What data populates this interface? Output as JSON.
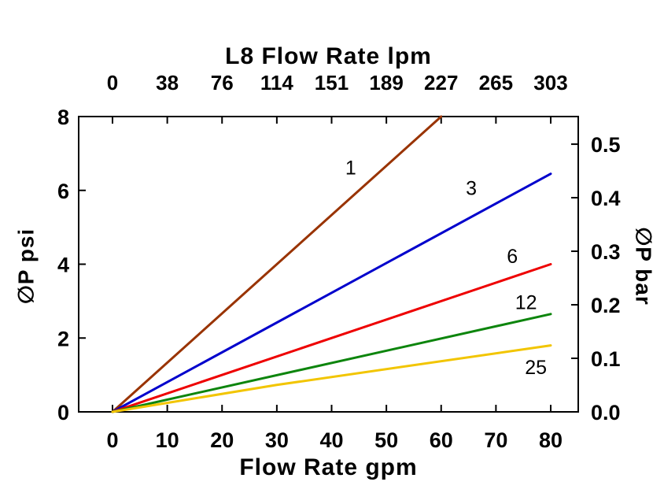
{
  "chart_data": {
    "type": "line",
    "title": "L8 Flow Rate lpm",
    "xlabel_top": "L8 Flow Rate lpm",
    "xlabel_bottom": "Flow Rate gpm",
    "ylabel_left": "∅P psi",
    "ylabel_right": "∅P bar",
    "grid": false,
    "legend": "inline-line-labels",
    "x_axis_bottom": {
      "unit": "gpm",
      "min": 0,
      "max": 80,
      "ticks": [
        0,
        10,
        20,
        30,
        40,
        50,
        60,
        70,
        80
      ]
    },
    "x_axis_top": {
      "unit": "lpm",
      "tick_labels": [
        "0",
        "38",
        "76",
        "114",
        "151",
        "189",
        "227",
        "265",
        "303"
      ]
    },
    "y_axis_left": {
      "unit": "psi",
      "min": 0,
      "max": 8,
      "ticks": [
        0,
        2,
        4,
        6,
        8
      ]
    },
    "y_axis_right": {
      "unit": "bar",
      "tick_labels": [
        "0.0",
        "0.1",
        "0.2",
        "0.3",
        "0.4",
        "0.5"
      ],
      "psi_per_bar": 14.5038
    },
    "series": [
      {
        "label": "1",
        "color": "#993300",
        "points_gpm_psi": [
          [
            0,
            0
          ],
          [
            60,
            8.0
          ]
        ],
        "label_pos": [
          43.5,
          6.6
        ]
      },
      {
        "label": "3",
        "color": "#0000cc",
        "points_gpm_psi": [
          [
            0,
            0
          ],
          [
            80,
            6.45
          ]
        ],
        "label_pos": [
          65.5,
          6.05
        ]
      },
      {
        "label": "6",
        "color": "#ee0000",
        "points_gpm_psi": [
          [
            0,
            0
          ],
          [
            80,
            4.0
          ]
        ],
        "label_pos": [
          73.0,
          4.2
        ]
      },
      {
        "label": "12",
        "color": "#0d850d",
        "points_gpm_psi": [
          [
            0,
            0
          ],
          [
            80,
            2.65
          ]
        ],
        "label_pos": [
          75.5,
          2.95
        ]
      },
      {
        "label": "25",
        "color": "#f2c500",
        "points_gpm_psi": [
          [
            0,
            0
          ],
          [
            30,
            0.73
          ],
          [
            80,
            1.8
          ]
        ],
        "label_pos": [
          77.3,
          1.2
        ]
      }
    ]
  }
}
